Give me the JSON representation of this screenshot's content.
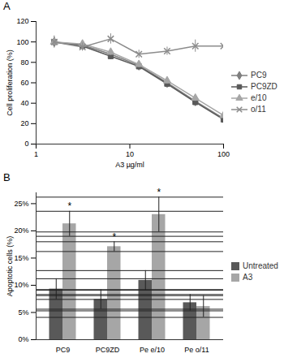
{
  "chart_data": [
    {
      "type": "line",
      "title": "A",
      "xlabel": "A3 µg/ml",
      "ylabel": "Cell proliferation (%)",
      "x": [
        1.56,
        3.125,
        6.25,
        12.5,
        25,
        50,
        100
      ],
      "series": [
        {
          "name": "PC9",
          "color": "#7f7f7f",
          "marker": "diamond",
          "line_style": "solid",
          "values": [
            100,
            97,
            88,
            77,
            60,
            42,
            25
          ],
          "errors": [
            5,
            3,
            3,
            3,
            3,
            3,
            2
          ]
        },
        {
          "name": "PC9ZD",
          "color": "#595959",
          "marker": "square",
          "line_style": "solid",
          "values": [
            100,
            96,
            86,
            76,
            59,
            41,
            24
          ],
          "errors": [
            4,
            3,
            3,
            3,
            3,
            3,
            2
          ]
        },
        {
          "name": "e/10",
          "color": "#a6a6a6",
          "marker": "triangle",
          "line_style": "solid",
          "values": [
            100,
            98,
            90,
            78,
            62,
            45,
            28
          ],
          "errors": [
            4,
            3,
            3,
            3,
            3,
            3,
            2
          ]
        },
        {
          "name": "o/11",
          "color": "#8c8c8c",
          "marker": "times",
          "line_style": "solid",
          "values": [
            100,
            95,
            103,
            88,
            91,
            96,
            96
          ],
          "errors": [
            6,
            4,
            5,
            4,
            4,
            6,
            4
          ]
        }
      ],
      "xlim": [
        1,
        100
      ],
      "xticks": [
        1,
        10,
        100
      ],
      "log": "x",
      "ylim": [
        0,
        120
      ],
      "yticks": [
        0,
        20,
        40,
        60,
        80,
        100,
        120
      ],
      "grid": false,
      "legend": "right"
    },
    {
      "type": "bar",
      "title": "B",
      "ylabel": "Apoptotic cells (%)",
      "categories": [
        "PC9",
        "PC9ZD",
        "Pe e/10",
        "Pe o/11"
      ],
      "series": [
        {
          "name": "Untreated",
          "color": "#595959",
          "values": [
            9.3,
            7.4,
            10.9,
            6.8
          ],
          "errors": [
            1.9,
            1.8,
            1.8,
            1.5
          ]
        },
        {
          "name": "A3",
          "color": "#a6a6a6",
          "values": [
            21.3,
            17.1,
            23,
            6.1
          ],
          "errors": [
            2.3,
            0.9,
            3.2,
            2
          ]
        }
      ],
      "annotations": [
        {
          "category": "PC9",
          "series": "A3",
          "text": "*"
        },
        {
          "category": "PC9ZD",
          "series": "A3",
          "text": "*"
        },
        {
          "category": "Pe e/10",
          "series": "A3",
          "text": "*"
        }
      ],
      "ylim": [
        0,
        27
      ],
      "yticks": [
        {
          "value": 0,
          "label": "0%"
        },
        {
          "value": 5,
          "label": "5%"
        },
        {
          "value": 10,
          "label": "10%"
        },
        {
          "value": 15,
          "label": "15%"
        },
        {
          "value": 20,
          "label": "20%"
        },
        {
          "value": 25,
          "label": "25%"
        }
      ],
      "grid": false,
      "legend": "right"
    }
  ]
}
